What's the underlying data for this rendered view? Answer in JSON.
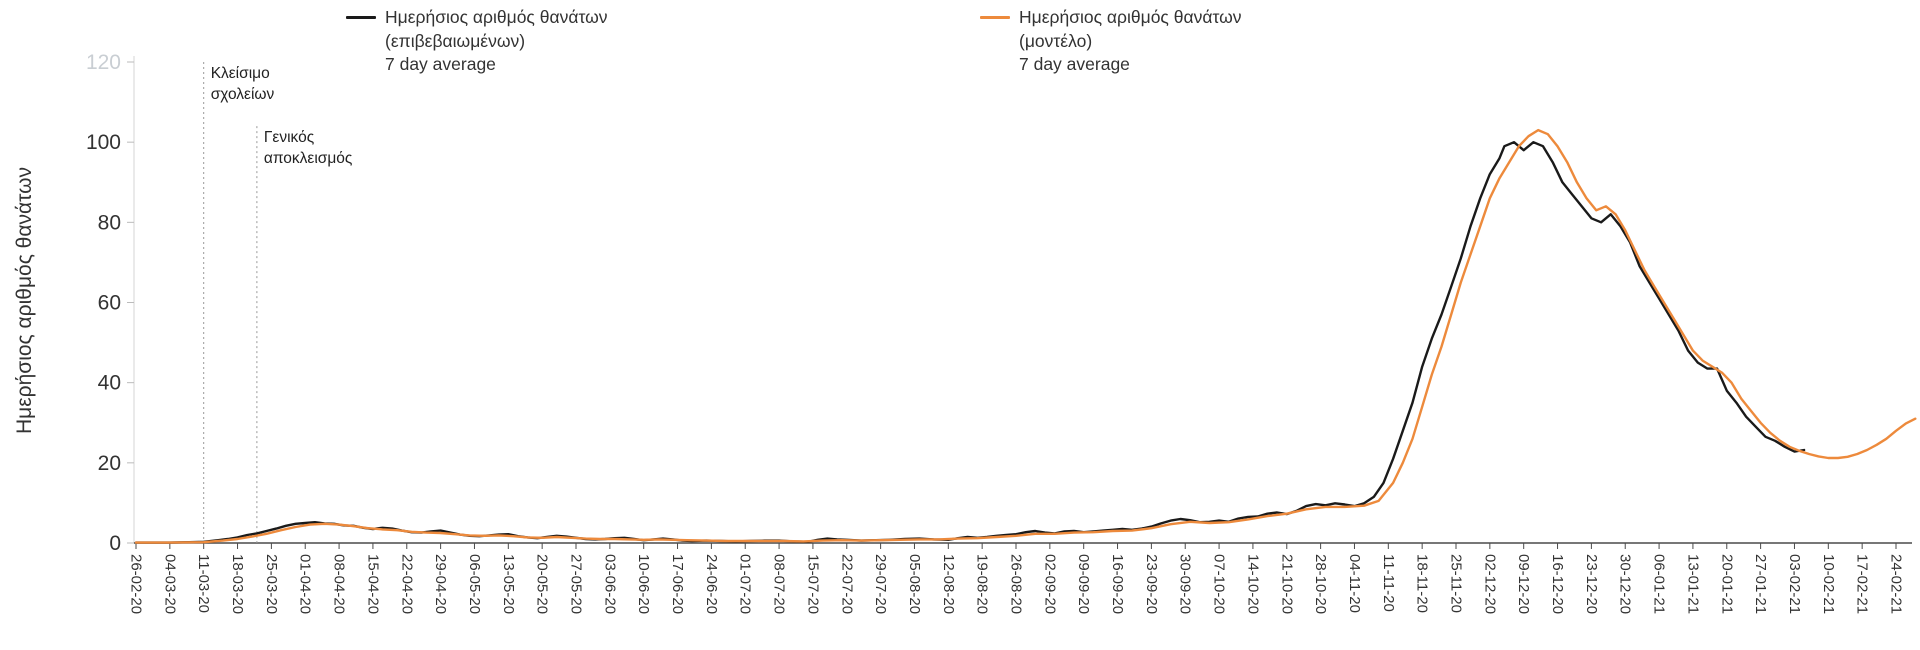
{
  "y_axis_title": "Ημερήσιος αριθμός θανάτων",
  "legend": {
    "items": [
      {
        "line1": "Ημερήσιος αριθμός θανάτων",
        "line2": "(επιβεβαιωμένων)",
        "line3": "7 day average",
        "color": "#1a1a1a"
      },
      {
        "line1": "Ημερήσιος αριθμός θανάτων",
        "line2": "(μοντέλο)",
        "line3": "7 day average",
        "color": "#ED8A3C"
      }
    ]
  },
  "chart_data": {
    "type": "line",
    "title": "",
    "ylabel": "Ημερήσιος αριθμός θανάτων",
    "xlabel": "",
    "grid": false,
    "legend_position": "top",
    "ylim": [
      0,
      120
    ],
    "y_ticks": [
      0,
      20,
      40,
      60,
      80,
      100,
      120
    ],
    "y_tick_muted": 120,
    "x_unit": "days since 26-02-20, weekly ticks",
    "x_tick_labels": [
      "26-02-20",
      "04-03-20",
      "11-03-20",
      "18-03-20",
      "25-03-20",
      "01-04-20",
      "08-04-20",
      "15-04-20",
      "22-04-20",
      "29-04-20",
      "06-05-20",
      "13-05-20",
      "20-05-20",
      "27-05-20",
      "03-06-20",
      "10-06-20",
      "17-06-20",
      "24-06-20",
      "01-07-20",
      "08-07-20",
      "15-07-20",
      "22-07-20",
      "29-07-20",
      "05-08-20",
      "12-08-20",
      "19-08-20",
      "26-08-20",
      "02-09-20",
      "09-09-20",
      "16-09-20",
      "23-09-20",
      "30-09-20",
      "07-10-20",
      "14-10-20",
      "21-10-20",
      "28-10-20",
      "04-11-20",
      "11-11-20",
      "18-11-20",
      "25-11-20",
      "02-12-20",
      "09-12-20",
      "16-12-20",
      "23-12-20",
      "30-12-20",
      "06-01-21",
      "13-01-21",
      "20-01-21",
      "27-01-21",
      "03-02-21",
      "10-02-21",
      "17-02-21",
      "24-02-21"
    ],
    "annotations": [
      {
        "label_lines": [
          "Κλείσιμο",
          "σχολείων"
        ],
        "day": 14,
        "date": "11-03-20",
        "line_top_value": 120
      },
      {
        "label_lines": [
          "Γενικός",
          "αποκλεισμός"
        ],
        "day": 25,
        "date": "22-03-20",
        "line_top_value": 104
      }
    ],
    "series": [
      {
        "name": "Ημερήσιος αριθμός θανάτων (επιβεβαιωμένων) 7 day average",
        "color": "#1a1a1a",
        "points": [
          [
            0,
            0.1
          ],
          [
            4,
            0.1
          ],
          [
            7,
            0.1
          ],
          [
            11,
            0.2
          ],
          [
            14,
            0.3
          ],
          [
            17,
            0.7
          ],
          [
            19,
            1
          ],
          [
            21,
            1.4
          ],
          [
            23,
            2
          ],
          [
            25,
            2.4
          ],
          [
            27,
            3
          ],
          [
            29,
            3.6
          ],
          [
            31,
            4.3
          ],
          [
            33,
            4.8
          ],
          [
            35,
            5
          ],
          [
            37,
            5.2
          ],
          [
            39,
            4.9
          ],
          [
            41,
            4.8
          ],
          [
            43,
            4.4
          ],
          [
            45,
            4.3
          ],
          [
            47,
            3.8
          ],
          [
            49,
            3.5
          ],
          [
            51,
            3.8
          ],
          [
            53,
            3.6
          ],
          [
            55,
            3.1
          ],
          [
            57,
            2.7
          ],
          [
            59,
            2.6
          ],
          [
            61,
            2.9
          ],
          [
            63,
            3.1
          ],
          [
            65,
            2.6
          ],
          [
            67,
            2.1
          ],
          [
            69,
            1.8
          ],
          [
            71,
            1.7
          ],
          [
            73,
            1.9
          ],
          [
            75,
            2.1
          ],
          [
            77,
            2.2
          ],
          [
            79,
            1.7
          ],
          [
            81,
            1.4
          ],
          [
            83,
            1.2
          ],
          [
            85,
            1.5
          ],
          [
            87,
            1.8
          ],
          [
            89,
            1.6
          ],
          [
            91,
            1.3
          ],
          [
            93,
            1
          ],
          [
            95,
            0.9
          ],
          [
            97,
            1
          ],
          [
            99,
            1.2
          ],
          [
            101,
            1.3
          ],
          [
            103,
            1
          ],
          [
            105,
            0.7
          ],
          [
            107,
            0.9
          ],
          [
            109,
            1.1
          ],
          [
            111,
            0.9
          ],
          [
            113,
            0.6
          ],
          [
            115,
            0.5
          ],
          [
            118,
            0.6
          ],
          [
            121,
            0.5
          ],
          [
            124,
            0.4
          ],
          [
            127,
            0.5
          ],
          [
            130,
            0.6
          ],
          [
            133,
            0.6
          ],
          [
            136,
            0.4
          ],
          [
            139,
            0.3
          ],
          [
            141,
            0.8
          ],
          [
            143,
            1.1
          ],
          [
            145,
            0.9
          ],
          [
            147,
            0.8
          ],
          [
            150,
            0.6
          ],
          [
            153,
            0.7
          ],
          [
            156,
            0.8
          ],
          [
            159,
            1
          ],
          [
            162,
            1.1
          ],
          [
            165,
            0.9
          ],
          [
            168,
            0.8
          ],
          [
            170,
            1.2
          ],
          [
            172,
            1.5
          ],
          [
            174,
            1.3
          ],
          [
            176,
            1.5
          ],
          [
            178,
            1.8
          ],
          [
            180,
            2
          ],
          [
            182,
            2.2
          ],
          [
            184,
            2.7
          ],
          [
            186,
            3
          ],
          [
            188,
            2.6
          ],
          [
            190,
            2.4
          ],
          [
            192,
            2.9
          ],
          [
            194,
            3
          ],
          [
            196,
            2.7
          ],
          [
            198,
            2.9
          ],
          [
            200,
            3.1
          ],
          [
            202,
            3.3
          ],
          [
            204,
            3.5
          ],
          [
            206,
            3.3
          ],
          [
            208,
            3.6
          ],
          [
            210,
            4.1
          ],
          [
            212,
            4.9
          ],
          [
            214,
            5.6
          ],
          [
            216,
            6
          ],
          [
            218,
            5.7
          ],
          [
            220,
            5.2
          ],
          [
            222,
            5.3
          ],
          [
            224,
            5.6
          ],
          [
            226,
            5.3
          ],
          [
            228,
            6.1
          ],
          [
            230,
            6.5
          ],
          [
            232,
            6.6
          ],
          [
            234,
            7.3
          ],
          [
            236,
            7.6
          ],
          [
            238,
            7.2
          ],
          [
            240,
            8
          ],
          [
            242,
            9.2
          ],
          [
            244,
            9.7
          ],
          [
            246,
            9.4
          ],
          [
            248,
            9.9
          ],
          [
            250,
            9.6
          ],
          [
            252,
            9.2
          ],
          [
            254,
            9.9
          ],
          [
            256,
            11.5
          ],
          [
            258,
            15
          ],
          [
            260,
            21
          ],
          [
            262,
            28
          ],
          [
            264,
            35
          ],
          [
            266,
            44
          ],
          [
            268,
            51
          ],
          [
            270,
            57
          ],
          [
            272,
            64
          ],
          [
            274,
            71
          ],
          [
            276,
            79
          ],
          [
            278,
            86
          ],
          [
            280,
            92
          ],
          [
            282,
            96
          ],
          [
            283,
            99
          ],
          [
            285,
            100
          ],
          [
            287,
            98
          ],
          [
            289,
            100
          ],
          [
            291,
            99
          ],
          [
            293,
            95
          ],
          [
            295,
            90
          ],
          [
            297,
            87
          ],
          [
            299,
            84
          ],
          [
            301,
            81
          ],
          [
            303,
            80
          ],
          [
            305,
            82
          ],
          [
            307,
            79
          ],
          [
            309,
            75
          ],
          [
            311,
            69
          ],
          [
            313,
            65
          ],
          [
            315,
            61
          ],
          [
            317,
            57
          ],
          [
            319,
            53
          ],
          [
            321,
            48
          ],
          [
            323,
            45
          ],
          [
            325,
            43.5
          ],
          [
            327,
            43.5
          ],
          [
            329,
            38
          ],
          [
            331,
            35
          ],
          [
            333,
            31.5
          ],
          [
            335,
            29
          ],
          [
            337,
            26.5
          ],
          [
            339,
            25.5
          ],
          [
            341,
            24
          ],
          [
            343,
            22.8
          ],
          [
            345,
            23.2
          ]
        ]
      },
      {
        "name": "Ημερήσιος αριθμός θανάτων (μοντέλο) 7 day average",
        "color": "#ED8A3C",
        "points": [
          [
            0,
            0.1
          ],
          [
            7,
            0.1
          ],
          [
            14,
            0.2
          ],
          [
            18,
            0.6
          ],
          [
            21,
            1
          ],
          [
            24,
            1.6
          ],
          [
            27,
            2.3
          ],
          [
            30,
            3.2
          ],
          [
            33,
            4
          ],
          [
            36,
            4.6
          ],
          [
            39,
            4.8
          ],
          [
            42,
            4.6
          ],
          [
            45,
            4.2
          ],
          [
            48,
            3.7
          ],
          [
            51,
            3.4
          ],
          [
            54,
            3.2
          ],
          [
            57,
            2.8
          ],
          [
            60,
            2.6
          ],
          [
            63,
            2.5
          ],
          [
            66,
            2.2
          ],
          [
            69,
            1.9
          ],
          [
            72,
            1.8
          ],
          [
            75,
            1.9
          ],
          [
            78,
            1.7
          ],
          [
            81,
            1.4
          ],
          [
            84,
            1.3
          ],
          [
            87,
            1.5
          ],
          [
            90,
            1.3
          ],
          [
            93,
            1.1
          ],
          [
            96,
            1
          ],
          [
            99,
            1
          ],
          [
            102,
            0.9
          ],
          [
            105,
            0.8
          ],
          [
            108,
            0.9
          ],
          [
            111,
            0.8
          ],
          [
            114,
            0.7
          ],
          [
            118,
            0.6
          ],
          [
            122,
            0.5
          ],
          [
            126,
            0.5
          ],
          [
            130,
            0.5
          ],
          [
            134,
            0.5
          ],
          [
            138,
            0.4
          ],
          [
            142,
            0.6
          ],
          [
            146,
            0.7
          ],
          [
            150,
            0.6
          ],
          [
            154,
            0.7
          ],
          [
            158,
            0.8
          ],
          [
            162,
            0.9
          ],
          [
            166,
            0.9
          ],
          [
            170,
            1.1
          ],
          [
            174,
            1.2
          ],
          [
            178,
            1.5
          ],
          [
            182,
            1.8
          ],
          [
            186,
            2.3
          ],
          [
            190,
            2.3
          ],
          [
            194,
            2.6
          ],
          [
            198,
            2.7
          ],
          [
            202,
            3
          ],
          [
            206,
            3.1
          ],
          [
            210,
            3.7
          ],
          [
            214,
            4.7
          ],
          [
            218,
            5.3
          ],
          [
            222,
            5
          ],
          [
            226,
            5.2
          ],
          [
            230,
            5.9
          ],
          [
            234,
            6.7
          ],
          [
            238,
            7.3
          ],
          [
            242,
            8.4
          ],
          [
            246,
            9
          ],
          [
            250,
            9
          ],
          [
            254,
            9.3
          ],
          [
            257,
            10.5
          ],
          [
            260,
            15
          ],
          [
            262,
            20
          ],
          [
            264,
            26
          ],
          [
            266,
            34
          ],
          [
            268,
            42
          ],
          [
            270,
            49
          ],
          [
            272,
            57
          ],
          [
            274,
            65
          ],
          [
            276,
            72
          ],
          [
            278,
            79
          ],
          [
            280,
            86
          ],
          [
            282,
            91
          ],
          [
            284,
            95
          ],
          [
            286,
            99
          ],
          [
            288,
            101.5
          ],
          [
            290,
            103
          ],
          [
            292,
            102
          ],
          [
            294,
            99
          ],
          [
            296,
            95
          ],
          [
            298,
            90
          ],
          [
            300,
            86
          ],
          [
            302,
            83
          ],
          [
            304,
            84
          ],
          [
            306,
            82
          ],
          [
            308,
            78
          ],
          [
            310,
            73
          ],
          [
            312,
            68
          ],
          [
            314,
            64
          ],
          [
            316,
            60
          ],
          [
            318,
            56
          ],
          [
            320,
            52
          ],
          [
            322,
            48
          ],
          [
            324,
            45.5
          ],
          [
            326,
            44
          ],
          [
            328,
            42.5
          ],
          [
            330,
            40
          ],
          [
            332,
            36
          ],
          [
            334,
            33
          ],
          [
            336,
            30
          ],
          [
            338,
            27.5
          ],
          [
            340,
            25.5
          ],
          [
            342,
            24
          ],
          [
            344,
            23
          ],
          [
            346,
            22.2
          ],
          [
            348,
            21.6
          ],
          [
            350,
            21.2
          ],
          [
            352,
            21.2
          ],
          [
            354,
            21.5
          ],
          [
            356,
            22.2
          ],
          [
            358,
            23.2
          ],
          [
            360,
            24.5
          ],
          [
            362,
            26
          ],
          [
            364,
            28
          ],
          [
            366,
            29.8
          ],
          [
            368,
            31
          ]
        ]
      }
    ]
  }
}
